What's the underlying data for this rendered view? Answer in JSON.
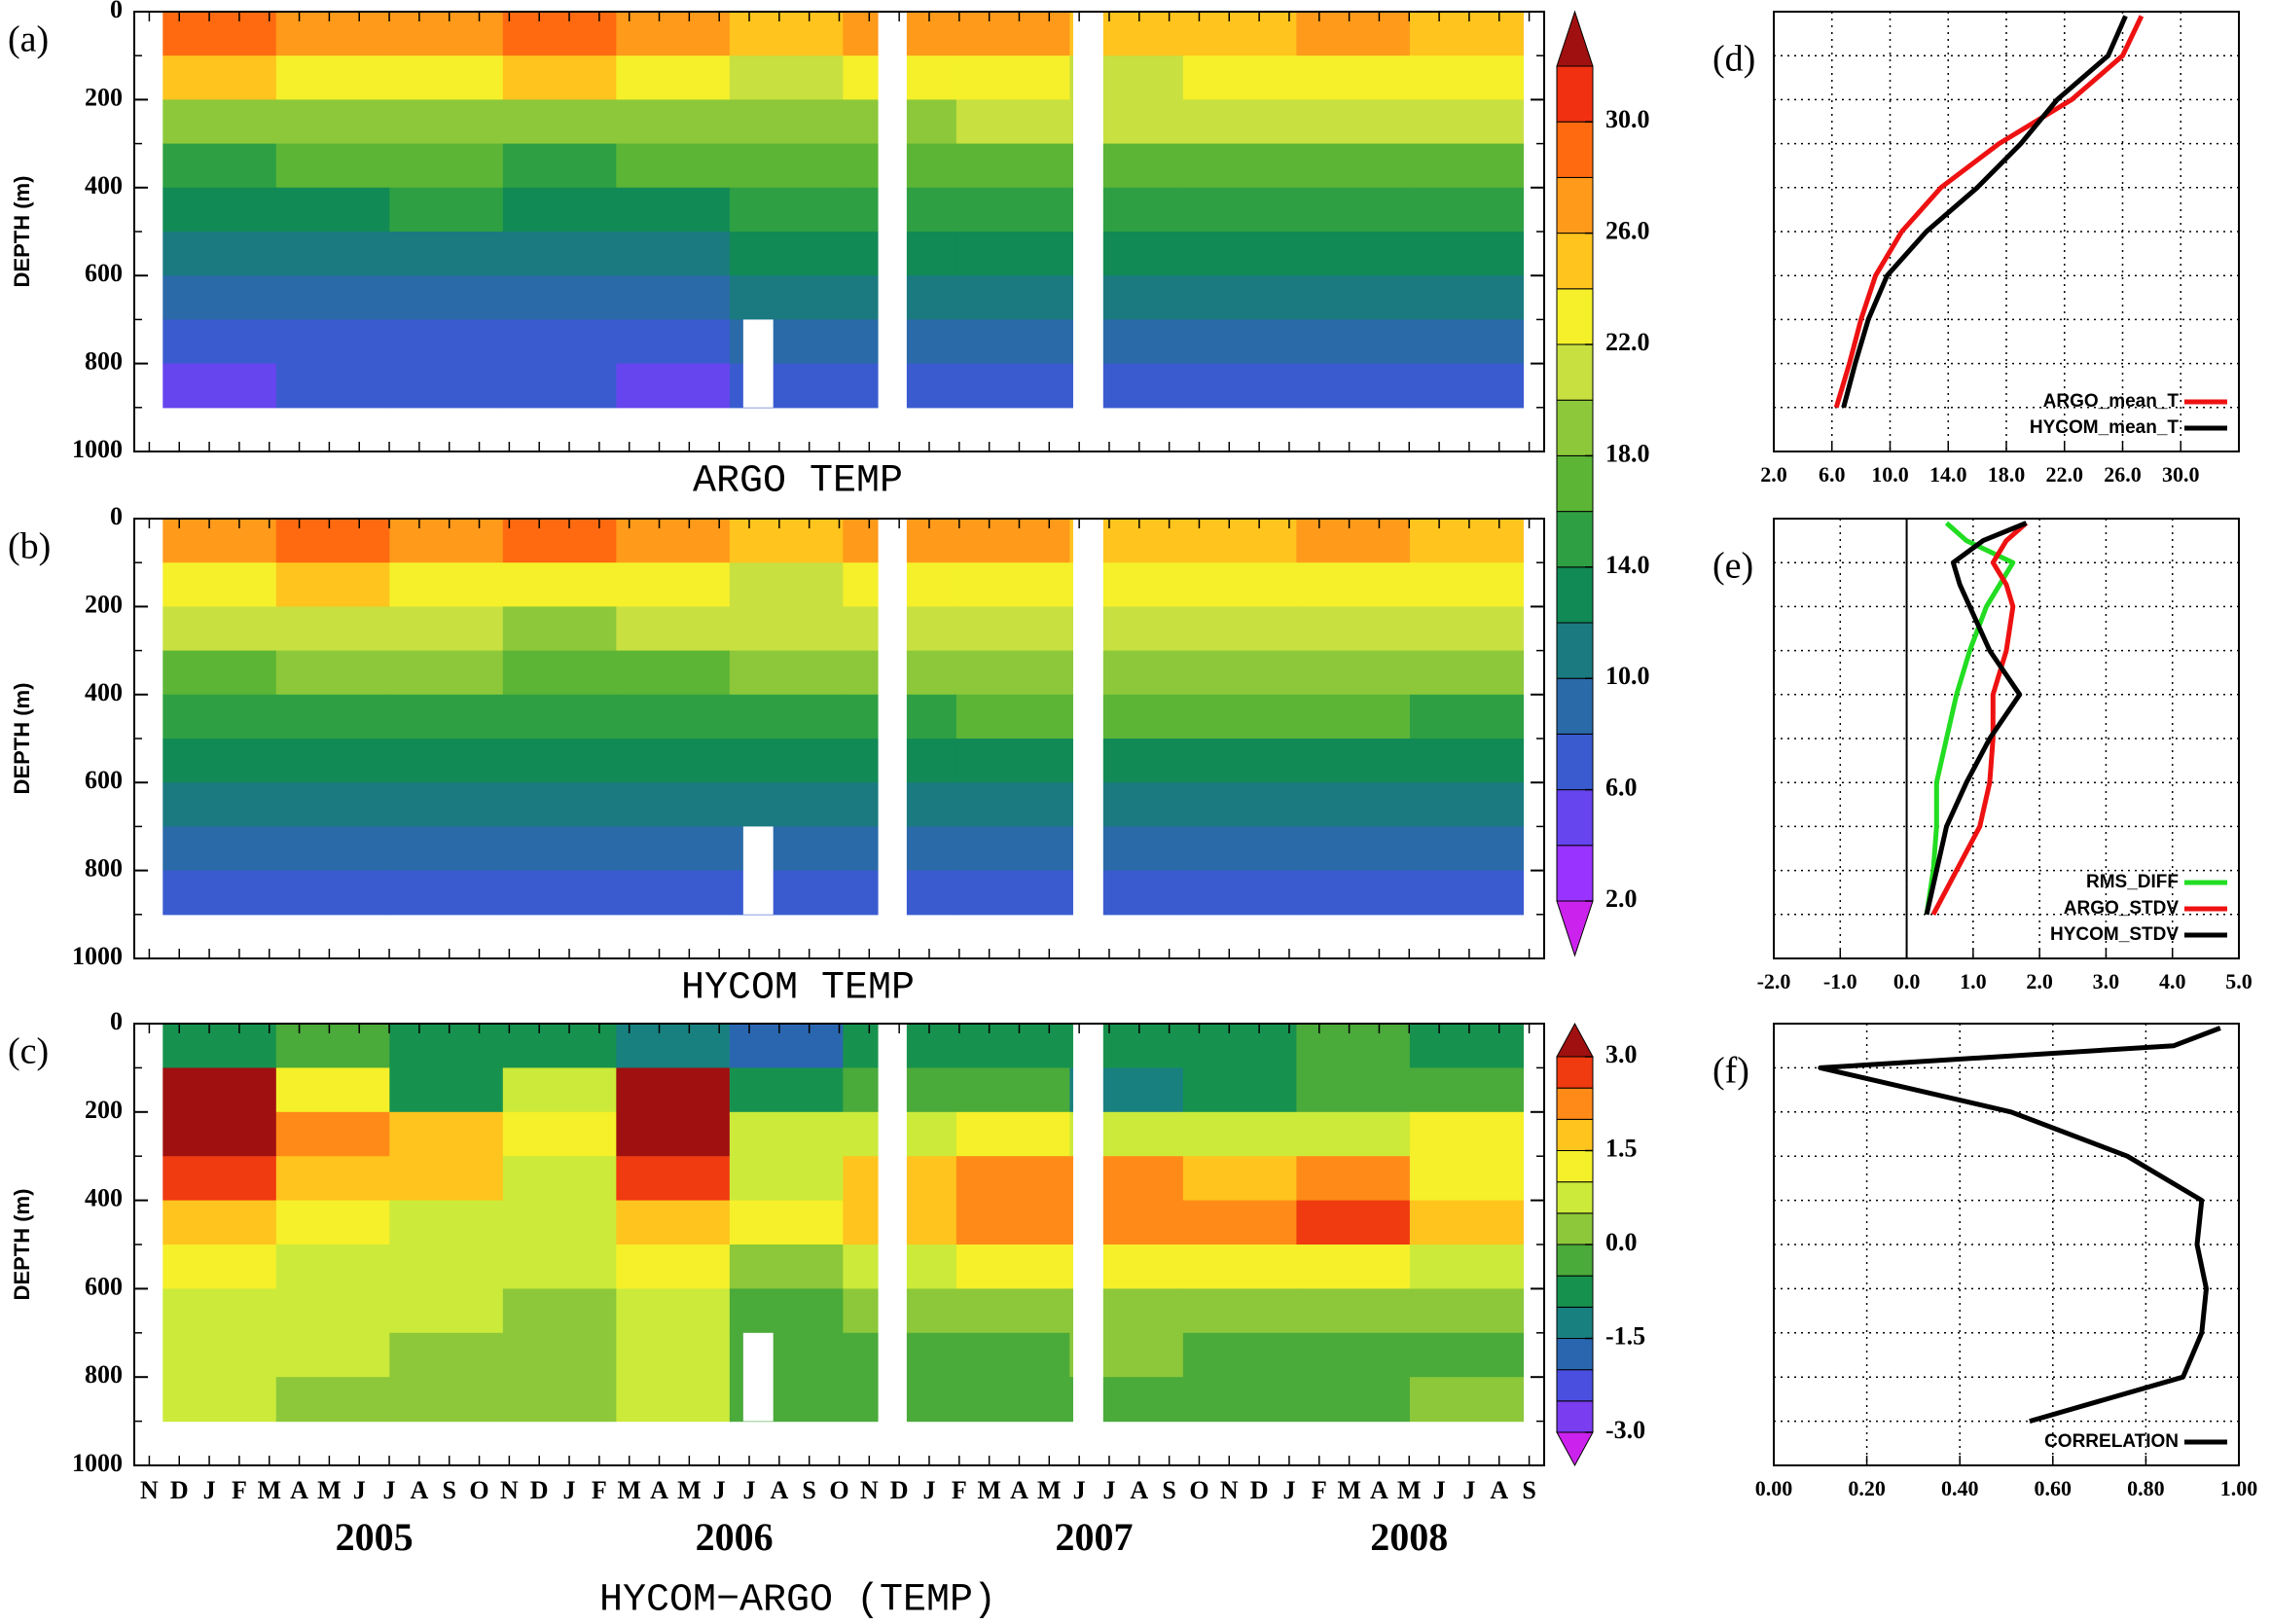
{
  "chart_data": [
    {
      "type": "contour",
      "panel_label": "(a)",
      "title": "ARGO TEMP",
      "ylabel": "DEPTH (m)",
      "ylim": [
        0,
        1000
      ],
      "y_inverted": true,
      "yticks": [
        0,
        200,
        400,
        600,
        800,
        1000
      ],
      "depth_bins": [
        0,
        100,
        200,
        300,
        400,
        500,
        600,
        700,
        800,
        900
      ],
      "z": [
        [
          28,
          27,
          26,
          28,
          27,
          24,
          27,
          27,
          24,
          25,
          26,
          24
        ],
        [
          24,
          23,
          22,
          24,
          22,
          21,
          22,
          22,
          21,
          22,
          22,
          22
        ],
        [
          18,
          19,
          19,
          19,
          19,
          19,
          19,
          20,
          20,
          20,
          20,
          20
        ],
        [
          15,
          16,
          16,
          15,
          16,
          17,
          17,
          17,
          17,
          17,
          17,
          17
        ],
        [
          13,
          13,
          14,
          13,
          13,
          14,
          14,
          14,
          14,
          14,
          14,
          14
        ],
        [
          11,
          11,
          11,
          11,
          11,
          12,
          12,
          12,
          12,
          12,
          12,
          12
        ],
        [
          9,
          9,
          9,
          9,
          9,
          10,
          10,
          10,
          10,
          10,
          10,
          10
        ],
        [
          7,
          7,
          7,
          7,
          7,
          8,
          8,
          8,
          9,
          8,
          8,
          8
        ],
        [
          5,
          6,
          6,
          6,
          5,
          6,
          7,
          7,
          7,
          7,
          7,
          7
        ]
      ],
      "colorbar": {
        "levels": [
          2,
          4,
          6,
          8,
          10,
          12,
          14,
          16,
          18,
          20,
          22,
          24,
          26,
          28,
          30,
          32
        ],
        "colors": [
          "#9933ff",
          "#6644ee",
          "#3a5bd0",
          "#2a6aa8",
          "#1a7a80",
          "#118a55",
          "#2ea043",
          "#5cb535",
          "#8cc83a",
          "#c8e040",
          "#f5f02a",
          "#ffc41e",
          "#ff9a1a",
          "#ff6a10",
          "#f03010"
        ],
        "under_color": "#cc22ee",
        "over_color": "#a01010",
        "ticks": [
          {
            "value": 2,
            "label": "2.0"
          },
          {
            "value": 6,
            "label": "6.0"
          },
          {
            "value": 10,
            "label": "10.0"
          },
          {
            "value": 14,
            "label": "14.0"
          },
          {
            "value": 18,
            "label": "18.0"
          },
          {
            "value": 22,
            "label": "22.0"
          },
          {
            "value": 26,
            "label": "26.0"
          },
          {
            "value": 30,
            "label": "30.0"
          }
        ]
      }
    },
    {
      "type": "contour",
      "panel_label": "(b)",
      "title": "HYCOM TEMP",
      "ylabel": "DEPTH (m)",
      "ylim": [
        0,
        1000
      ],
      "y_inverted": true,
      "yticks": [
        0,
        200,
        400,
        600,
        800,
        1000
      ],
      "depth_bins": [
        0,
        100,
        200,
        300,
        400,
        500,
        600,
        700,
        800,
        900
      ],
      "z": [
        [
          27,
          28,
          26,
          28,
          27,
          25,
          27,
          27,
          24,
          25,
          27,
          25
        ],
        [
          23,
          24,
          22,
          23,
          23,
          21,
          22,
          22,
          22,
          22,
          22,
          22
        ],
        [
          20,
          20,
          20,
          19,
          20,
          20,
          20,
          20,
          20,
          20,
          20,
          20
        ],
        [
          17,
          18,
          18,
          17,
          17,
          18,
          18,
          18,
          18,
          18,
          18,
          18
        ],
        [
          15,
          15,
          15,
          15,
          14,
          15,
          15,
          16,
          16,
          16,
          16,
          15
        ],
        [
          12,
          12,
          13,
          12,
          12,
          13,
          13,
          13,
          13,
          13,
          13,
          13
        ],
        [
          10,
          10,
          10,
          10,
          10,
          11,
          11,
          11,
          11,
          11,
          11,
          11
        ],
        [
          8,
          8,
          9,
          8,
          8,
          9,
          9,
          9,
          9,
          9,
          9,
          9
        ],
        [
          7,
          7,
          7,
          7,
          7,
          7,
          7,
          7,
          7,
          7,
          7,
          7
        ]
      ]
    },
    {
      "type": "contour",
      "panel_label": "(c)",
      "title": "HYCOM−ARGO (TEMP)",
      "ylabel": "DEPTH (m)",
      "ylim": [
        0,
        1000
      ],
      "y_inverted": true,
      "yticks": [
        0,
        200,
        400,
        600,
        800,
        1000
      ],
      "categories": [
        "N",
        "D",
        "J",
        "F",
        "M",
        "A",
        "M",
        "J",
        "J",
        "A",
        "S",
        "O",
        "N",
        "D",
        "J",
        "F",
        "M",
        "A",
        "M",
        "J",
        "J",
        "A",
        "S",
        "O",
        "N",
        "D",
        "J",
        "F",
        "M",
        "A",
        "M",
        "J",
        "J",
        "A",
        "S",
        "O",
        "N",
        "D",
        "J",
        "F",
        "M",
        "A",
        "M",
        "J",
        "J",
        "A",
        "S"
      ],
      "years": [
        "2005",
        "2006",
        "2007",
        "2008"
      ],
      "depth_bins": [
        0,
        100,
        200,
        300,
        400,
        500,
        600,
        700,
        800,
        900
      ],
      "z": [
        [
          -1,
          -0.5,
          -1,
          -1,
          -1.5,
          -2,
          -1,
          -1,
          -1,
          -1,
          -0.5,
          -1
        ],
        [
          3,
          1,
          -1,
          0.5,
          3,
          -1,
          -0.5,
          -0.5,
          -1.5,
          -1,
          -0.5,
          -0.5
        ],
        [
          3.2,
          2,
          1.5,
          1,
          3.2,
          0.5,
          0.5,
          1,
          0.5,
          0.5,
          0.5,
          1
        ],
        [
          2.5,
          1.5,
          1.5,
          0.5,
          2.5,
          0.5,
          1.5,
          2,
          2,
          1.5,
          2,
          1
        ],
        [
          1.5,
          1,
          0.5,
          0.5,
          1.5,
          1,
          1.5,
          2,
          2,
          2,
          2.5,
          1.5
        ],
        [
          1,
          0.5,
          0.5,
          0.5,
          1,
          0,
          0.5,
          1,
          1,
          1,
          1,
          0.5
        ],
        [
          0.5,
          0.5,
          0.5,
          0,
          0.5,
          -0.5,
          0,
          0,
          0,
          0,
          0,
          0
        ],
        [
          0.5,
          0.5,
          0,
          0,
          0.5,
          -0.5,
          -0.5,
          -0.5,
          0,
          -0.5,
          -0.5,
          -0.5
        ],
        [
          0.5,
          0,
          0,
          0,
          0.5,
          -0.5,
          -0.5,
          -0.5,
          -0.5,
          -0.5,
          -0.5,
          0
        ]
      ],
      "colorbar": {
        "levels": [
          -3,
          -2.5,
          -2,
          -1.5,
          -1,
          -0.5,
          0,
          0.5,
          1,
          1.5,
          2,
          2.5,
          3
        ],
        "colors": [
          "#7a3df0",
          "#4a4fe0",
          "#2a66b0",
          "#198080",
          "#17924e",
          "#4aaa3a",
          "#8cc83a",
          "#ccea3a",
          "#f5f02a",
          "#ffc41e",
          "#ff8a18",
          "#f03a10"
        ],
        "under_color": "#cc22ee",
        "over_color": "#a01010",
        "ticks": [
          {
            "value": -3,
            "label": "-3.0"
          },
          {
            "value": -1.5,
            "label": "-1.5"
          },
          {
            "value": 0,
            "label": "0.0"
          },
          {
            "value": 1.5,
            "label": "1.5"
          },
          {
            "value": 3,
            "label": "3.0"
          }
        ]
      }
    },
    {
      "type": "line",
      "panel_label": "(d)",
      "ylim": [
        0,
        1000
      ],
      "y_inverted": true,
      "ygrid": [
        100,
        200,
        300,
        400,
        500,
        600,
        700,
        800,
        900
      ],
      "xlim": [
        2,
        34
      ],
      "xticks": [
        {
          "value": 2,
          "label": "2.0"
        },
        {
          "value": 6,
          "label": "6.0"
        },
        {
          "value": 10,
          "label": "10.0"
        },
        {
          "value": 14,
          "label": "14.0"
        },
        {
          "value": 18,
          "label": "18.0"
        },
        {
          "value": 22,
          "label": "22.0"
        },
        {
          "value": 26,
          "label": "26.0"
        },
        {
          "value": 30,
          "label": "30.0"
        }
      ],
      "y": [
        10,
        100,
        200,
        300,
        400,
        500,
        600,
        700,
        800,
        900
      ],
      "legend": "lower right",
      "series": [
        {
          "name": "ARGO_mean_T",
          "color": "#ee1111",
          "values": [
            27.3,
            26,
            22.5,
            17.5,
            13.5,
            10.8,
            9,
            8,
            7.2,
            6.3
          ]
        },
        {
          "name": "HYCOM_mean_T",
          "color": "#000000",
          "values": [
            26.2,
            25,
            21.5,
            19,
            16,
            12.5,
            9.8,
            8.5,
            7.6,
            6.8
          ]
        }
      ]
    },
    {
      "type": "line",
      "panel_label": "(e)",
      "ylim": [
        0,
        1000
      ],
      "y_inverted": true,
      "ygrid": [
        100,
        200,
        300,
        400,
        500,
        600,
        700,
        800,
        900
      ],
      "xlim": [
        -2,
        5
      ],
      "xticks": [
        {
          "value": -2,
          "label": "-2.0"
        },
        {
          "value": -1,
          "label": "-1.0"
        },
        {
          "value": 0,
          "label": "0.0"
        },
        {
          "value": 1,
          "label": "1.0"
        },
        {
          "value": 2,
          "label": "2.0"
        },
        {
          "value": 3,
          "label": "3.0"
        },
        {
          "value": 4,
          "label": "4.0"
        },
        {
          "value": 5,
          "label": "5.0"
        }
      ],
      "y": [
        10,
        50,
        100,
        150,
        200,
        300,
        400,
        500,
        600,
        700,
        800,
        900
      ],
      "legend": "lower right",
      "series": [
        {
          "name": "RMS_DIFF",
          "color": "#22dd22",
          "values": [
            0.6,
            0.9,
            1.6,
            1.4,
            1.2,
            0.95,
            0.75,
            0.6,
            0.45,
            0.45,
            0.4,
            0.3
          ]
        },
        {
          "name": "ARGO_STDV",
          "color": "#ee1111",
          "values": [
            1.8,
            1.5,
            1.3,
            1.5,
            1.6,
            1.5,
            1.3,
            1.3,
            1.25,
            1.1,
            0.75,
            0.4
          ]
        },
        {
          "name": "HYCOM_STDV",
          "color": "#000000",
          "values": [
            1.8,
            1.15,
            0.7,
            0.8,
            0.95,
            1.25,
            1.7,
            1.25,
            0.9,
            0.6,
            0.45,
            0.3
          ]
        }
      ]
    },
    {
      "type": "line",
      "panel_label": "(f)",
      "ylim": [
        0,
        1000
      ],
      "y_inverted": true,
      "ygrid": [
        100,
        200,
        300,
        400,
        500,
        600,
        700,
        800,
        900
      ],
      "xlim": [
        0,
        1
      ],
      "xticks": [
        {
          "value": 0,
          "label": "0.00"
        },
        {
          "value": 0.2,
          "label": "0.20"
        },
        {
          "value": 0.4,
          "label": "0.40"
        },
        {
          "value": 0.6,
          "label": "0.60"
        },
        {
          "value": 0.8,
          "label": "0.80"
        },
        {
          "value": 1,
          "label": "1.00"
        }
      ],
      "y": [
        10,
        50,
        100,
        200,
        300,
        400,
        500,
        600,
        700,
        800,
        900
      ],
      "legend": "lower right",
      "series": [
        {
          "name": "CORRELATION",
          "color": "#000000",
          "values": [
            0.96,
            0.86,
            0.1,
            0.51,
            0.76,
            0.92,
            0.91,
            0.93,
            0.92,
            0.88,
            0.55
          ]
        }
      ]
    }
  ]
}
